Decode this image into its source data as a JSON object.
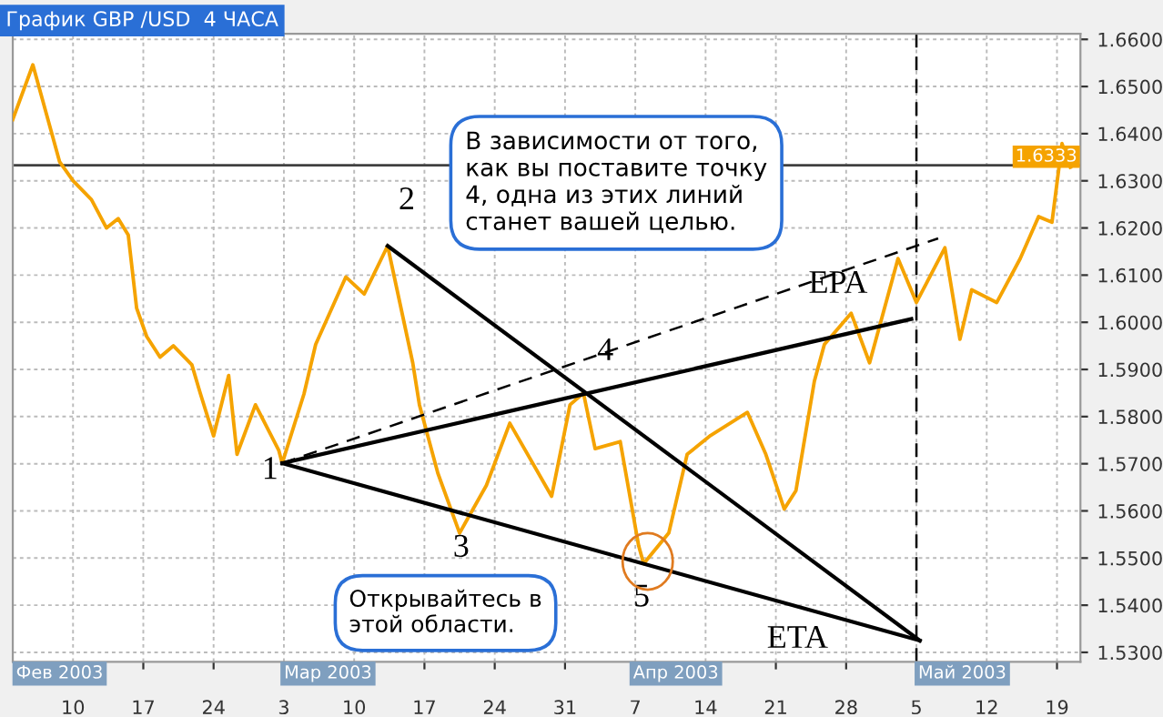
{
  "chart_data": {
    "type": "line",
    "title": "График GBP /USD  4 ЧАСА",
    "series": [
      {
        "color": "#f5a300",
        "line_style": "solid",
        "x": [
          "2003-02-04T00:00",
          "2003-02-06T00:00",
          "2003-02-08T16:00",
          "2003-02-10T00:00",
          "2003-02-11T20:00",
          "2003-02-13T08:00",
          "2003-02-14T12:00",
          "2003-02-15T12:00",
          "2003-02-16T08:00",
          "2003-02-17T08:00",
          "2003-02-18T16:00",
          "2003-02-20T00:00",
          "2003-02-21T20:00",
          "2003-02-22T16:00",
          "2003-02-24T00:00",
          "2003-02-25T12:00",
          "2003-02-26T08:00",
          "2003-02-28T04:00",
          "2003-03-02T12:00",
          "2003-03-02T20:00",
          "2003-03-05T00:00",
          "2003-03-06T04:00",
          "2003-03-09T04:00",
          "2003-03-11T00:00",
          "2003-03-13T08:00",
          "2003-03-15T20:00",
          "2003-03-16T12:00",
          "2003-03-18T08:00",
          "2003-03-20T12:00",
          "2003-03-23T04:00",
          "2003-03-25T12:00",
          "2003-03-29T16:00",
          "2003-03-31T12:00",
          "2003-04-01T20:00",
          "2003-04-03T00:00",
          "2003-04-05T12:00",
          "2003-04-07T08:00",
          "2003-04-07T20:00",
          "2003-04-10T08:00",
          "2003-04-12T04:00",
          "2003-04-14T12:00",
          "2003-04-18T04:00",
          "2003-04-20T00:00",
          "2003-04-21T20:00",
          "2003-04-23T00:00",
          "2003-04-24T20:00",
          "2003-04-25T20:00",
          "2003-04-28T12:00",
          "2003-04-30T08:00",
          "2003-05-03T04:00",
          "2003-05-05T00:00",
          "2003-05-07T20:00",
          "2003-05-09T08:00",
          "2003-05-10T12:00",
          "2003-05-13T00:00",
          "2003-05-15T08:00",
          "2003-05-17T04:00",
          "2003-05-18T12:00",
          "2003-05-19T12:00",
          "2003-05-20T08:00"
        ],
        "values": [
          1.643,
          1.6546,
          1.634,
          1.63,
          1.626,
          1.62,
          1.622,
          1.6185,
          1.603,
          1.597,
          1.5926,
          1.595,
          1.591,
          1.585,
          1.5759,
          1.5887,
          1.572,
          1.5825,
          1.5728,
          1.5701,
          1.5848,
          1.5953,
          1.6096,
          1.606,
          1.6162,
          1.5914,
          1.5825,
          1.568,
          1.5553,
          1.5654,
          1.5786,
          1.5631,
          1.5825,
          1.585,
          1.5732,
          1.5747,
          1.5526,
          1.5488,
          1.5553,
          1.572,
          1.576,
          1.5809,
          1.572,
          1.5604,
          1.5643,
          1.5875,
          1.5953,
          1.6019,
          1.5914,
          1.6135,
          1.6042,
          1.6158,
          1.5964,
          1.6069,
          1.6042,
          1.6135,
          1.6224,
          1.6212,
          1.6379,
          1.6329
        ]
      },
      {
        "color": "#000000",
        "line_style": "solid",
        "x": [
          "2003-03-13T08:00",
          "2003-05-05T08:00"
        ],
        "values": [
          1.6162,
          1.5325
        ]
      },
      {
        "color": "#000000",
        "line_style": "solid",
        "x": [
          "2003-03-02T20:00",
          "2003-05-05T08:00"
        ],
        "values": [
          1.5701,
          1.5325
        ]
      },
      {
        "color": "#000000",
        "line_style": "solid",
        "x": [
          "2003-03-02T20:00",
          "2003-05-04T12:00"
        ],
        "values": [
          1.5701,
          1.6007
        ]
      },
      {
        "color": "#000000",
        "line_style": "dashed",
        "x": [
          "2003-03-02T20:00",
          "2003-05-07T04:00"
        ],
        "values": [
          1.5701,
          1.6178
        ]
      }
    ],
    "xlim": [
      "2003-02-04T00:00",
      "2003-05-21T08:00"
    ],
    "xticks": [
      {
        "value": "2003-02-10",
        "label": "10"
      },
      {
        "value": "2003-02-17",
        "label": "17"
      },
      {
        "value": "2003-02-24",
        "label": "24"
      },
      {
        "value": "2003-03-03",
        "label": "3"
      },
      {
        "value": "2003-03-10",
        "label": "10"
      },
      {
        "value": "2003-03-17",
        "label": "17"
      },
      {
        "value": "2003-03-24",
        "label": "24"
      },
      {
        "value": "2003-03-31",
        "label": "31"
      },
      {
        "value": "2003-04-07",
        "label": "7"
      },
      {
        "value": "2003-04-14",
        "label": "14"
      },
      {
        "value": "2003-04-21",
        "label": "21"
      },
      {
        "value": "2003-04-28",
        "label": "28"
      },
      {
        "value": "2003-05-05",
        "label": "5"
      },
      {
        "value": "2003-05-12",
        "label": "12"
      },
      {
        "value": "2003-05-19",
        "label": "19"
      }
    ],
    "ylim": [
      1.528,
      1.6612
    ],
    "yticks": [
      {
        "value": 1.53,
        "label": "1.5300"
      },
      {
        "value": 1.54,
        "label": "1.5400"
      },
      {
        "value": 1.55,
        "label": "1.5500"
      },
      {
        "value": 1.56,
        "label": "1.5600"
      },
      {
        "value": 1.57,
        "label": "1.5700"
      },
      {
        "value": 1.58,
        "label": "1.5800"
      },
      {
        "value": 1.59,
        "label": "1.5900"
      },
      {
        "value": 1.6,
        "label": "1.6000"
      },
      {
        "value": 1.61,
        "label": "1.6100"
      },
      {
        "value": 1.62,
        "label": "1.6200"
      },
      {
        "value": 1.63,
        "label": "1.6300"
      },
      {
        "value": 1.64,
        "label": "1.6400"
      },
      {
        "value": 1.65,
        "label": "1.6500"
      },
      {
        "value": 1.66,
        "label": "1.6600"
      }
    ],
    "grid": true,
    "marker": "none",
    "ref_lines": [
      {
        "axis": "y",
        "value": 1.6333,
        "label": "1.6333",
        "color": "#404040",
        "line_style": "solid"
      },
      {
        "axis": "x",
        "value": "2003-05-05",
        "color": "#000000",
        "line_style": "dashed"
      }
    ],
    "annotations": [
      "1",
      "2",
      "3",
      "4",
      "5",
      "EPA",
      "ETA",
      "Фев 2003",
      "Мар 2003",
      "Апр 2003",
      "Май 2003",
      "В зависимости от того,\nкак вы поставите точку\n4, одна из этих линий\nстанет вашей целью.",
      "Открывайтесь в\nэтой области."
    ]
  }
}
